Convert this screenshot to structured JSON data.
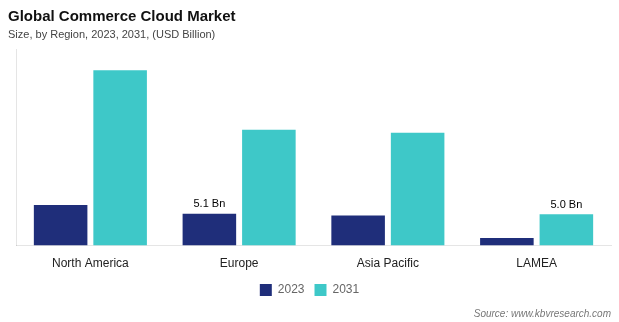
{
  "chart_data": {
    "type": "bar",
    "title": "Global Commerce Cloud Market",
    "subtitle": "Size, by Region, 2023, 2031, (USD Billion)",
    "source": "Source: www.kbvresearch.com",
    "categories": [
      "North America",
      "Europe",
      "Asia Pacific",
      "LAMEA"
    ],
    "series": [
      {
        "name": "2023",
        "color": "#1f2e7a",
        "values": [
          6.5,
          5.1,
          4.8,
          1.2
        ]
      },
      {
        "name": "2031",
        "color": "#3ec8c8",
        "values": [
          28.0,
          18.5,
          18.0,
          5.0
        ]
      }
    ],
    "annotations": [
      {
        "text": "5.1 Bn",
        "category": "Europe",
        "series": "2023",
        "value": 5.1
      },
      {
        "text": "5.0 Bn",
        "category": "LAMEA",
        "series": "2031",
        "value": 5.0
      }
    ],
    "ylim": [
      0,
      31.36
    ],
    "tick_labels": "x",
    "grid": false,
    "legend": "bottom"
  }
}
